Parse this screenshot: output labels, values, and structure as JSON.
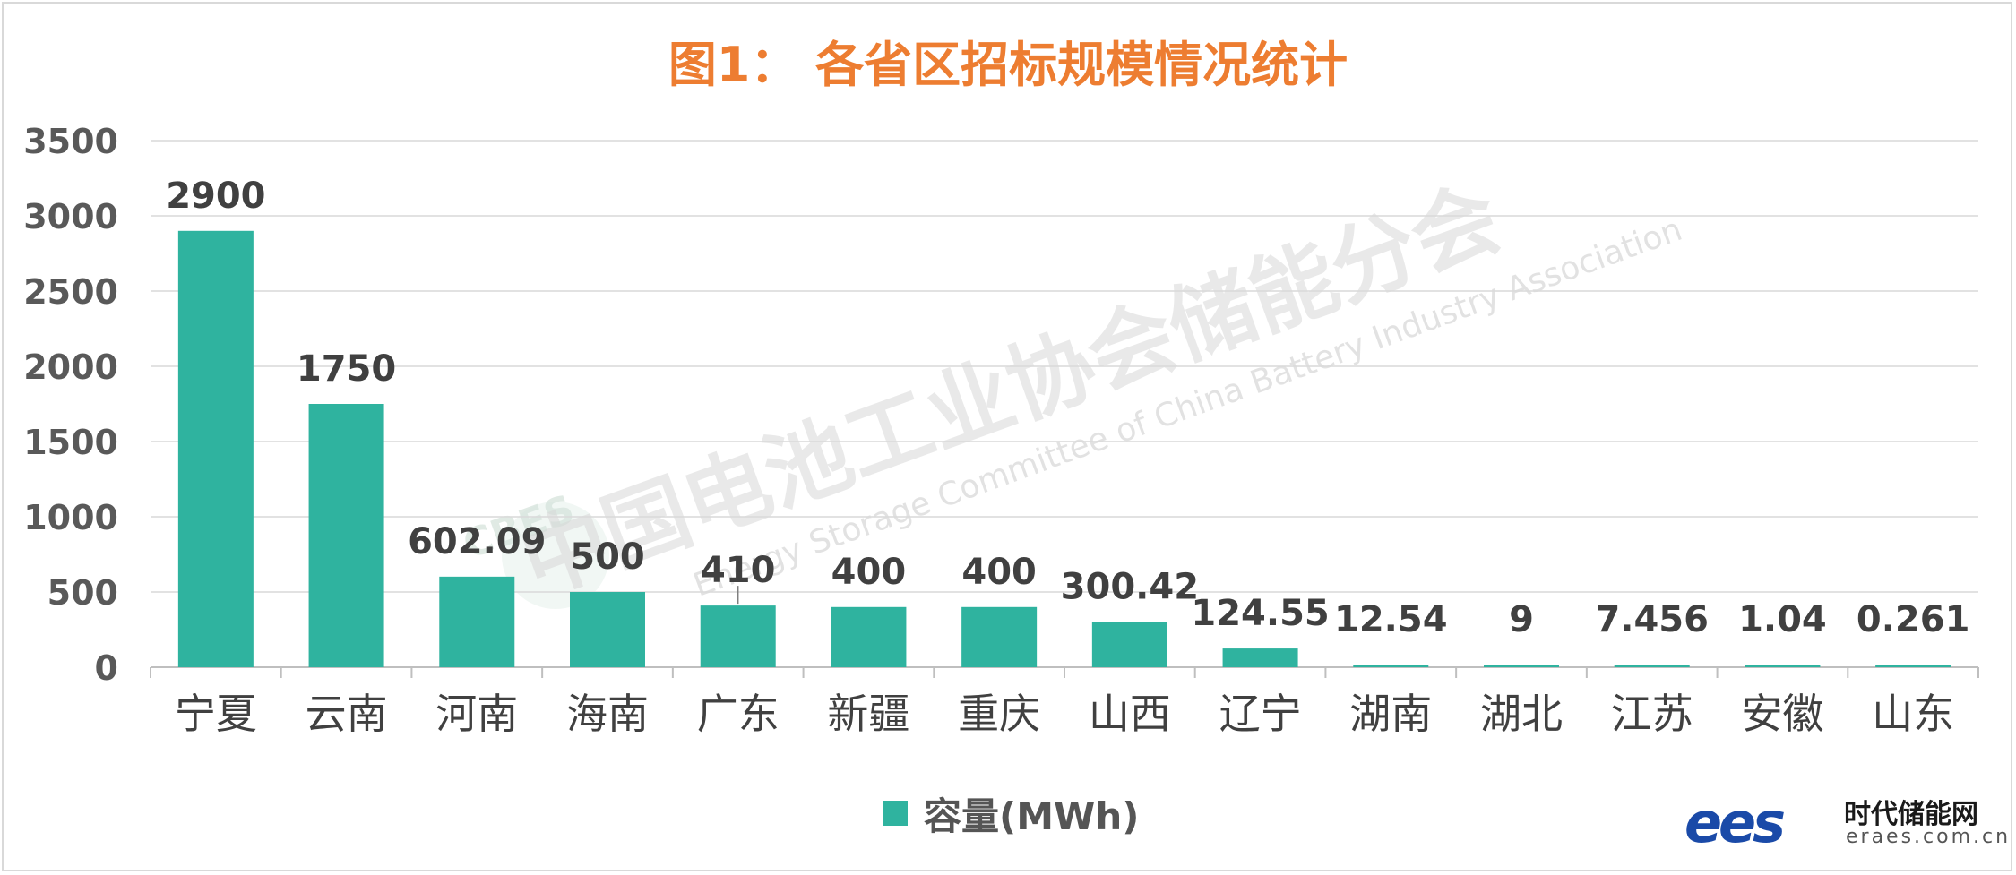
{
  "watermark": {
    "main": "中国电池工业协会储能分会",
    "sub": "Energy Storage Committee of China Battery Industry Association",
    "badge": "CBES"
  },
  "logo": {
    "mark": "ees",
    "name": "时代储能网",
    "url": "eraes.com.cn"
  },
  "chart_data": {
    "type": "bar",
    "title": "图1：  各省区招标规模情况统计",
    "categories": [
      "宁夏",
      "云南",
      "河南",
      "海南",
      "广东",
      "新疆",
      "重庆",
      "山西",
      "辽宁",
      "湖南",
      "湖北",
      "江苏",
      "安徽",
      "山东"
    ],
    "series": [
      {
        "name": "容量(MWh)",
        "values": [
          2900,
          1750,
          602.09,
          500,
          410,
          400,
          400,
          300.42,
          124.55,
          12.54,
          9,
          7.456,
          1.04,
          0.261
        ],
        "labels": [
          "2900",
          "1750",
          "602.09",
          "500",
          "410",
          "400",
          "400",
          "300.42",
          "124.55",
          "12.54",
          "9",
          "7.456",
          "1.04",
          "0.261"
        ],
        "color": "#2fb39f"
      }
    ],
    "ylim": [
      0,
      3500
    ],
    "yticks": [
      0,
      500,
      1000,
      1500,
      2000,
      2500,
      3000,
      3500
    ],
    "grid": true,
    "legend": "bottom"
  }
}
